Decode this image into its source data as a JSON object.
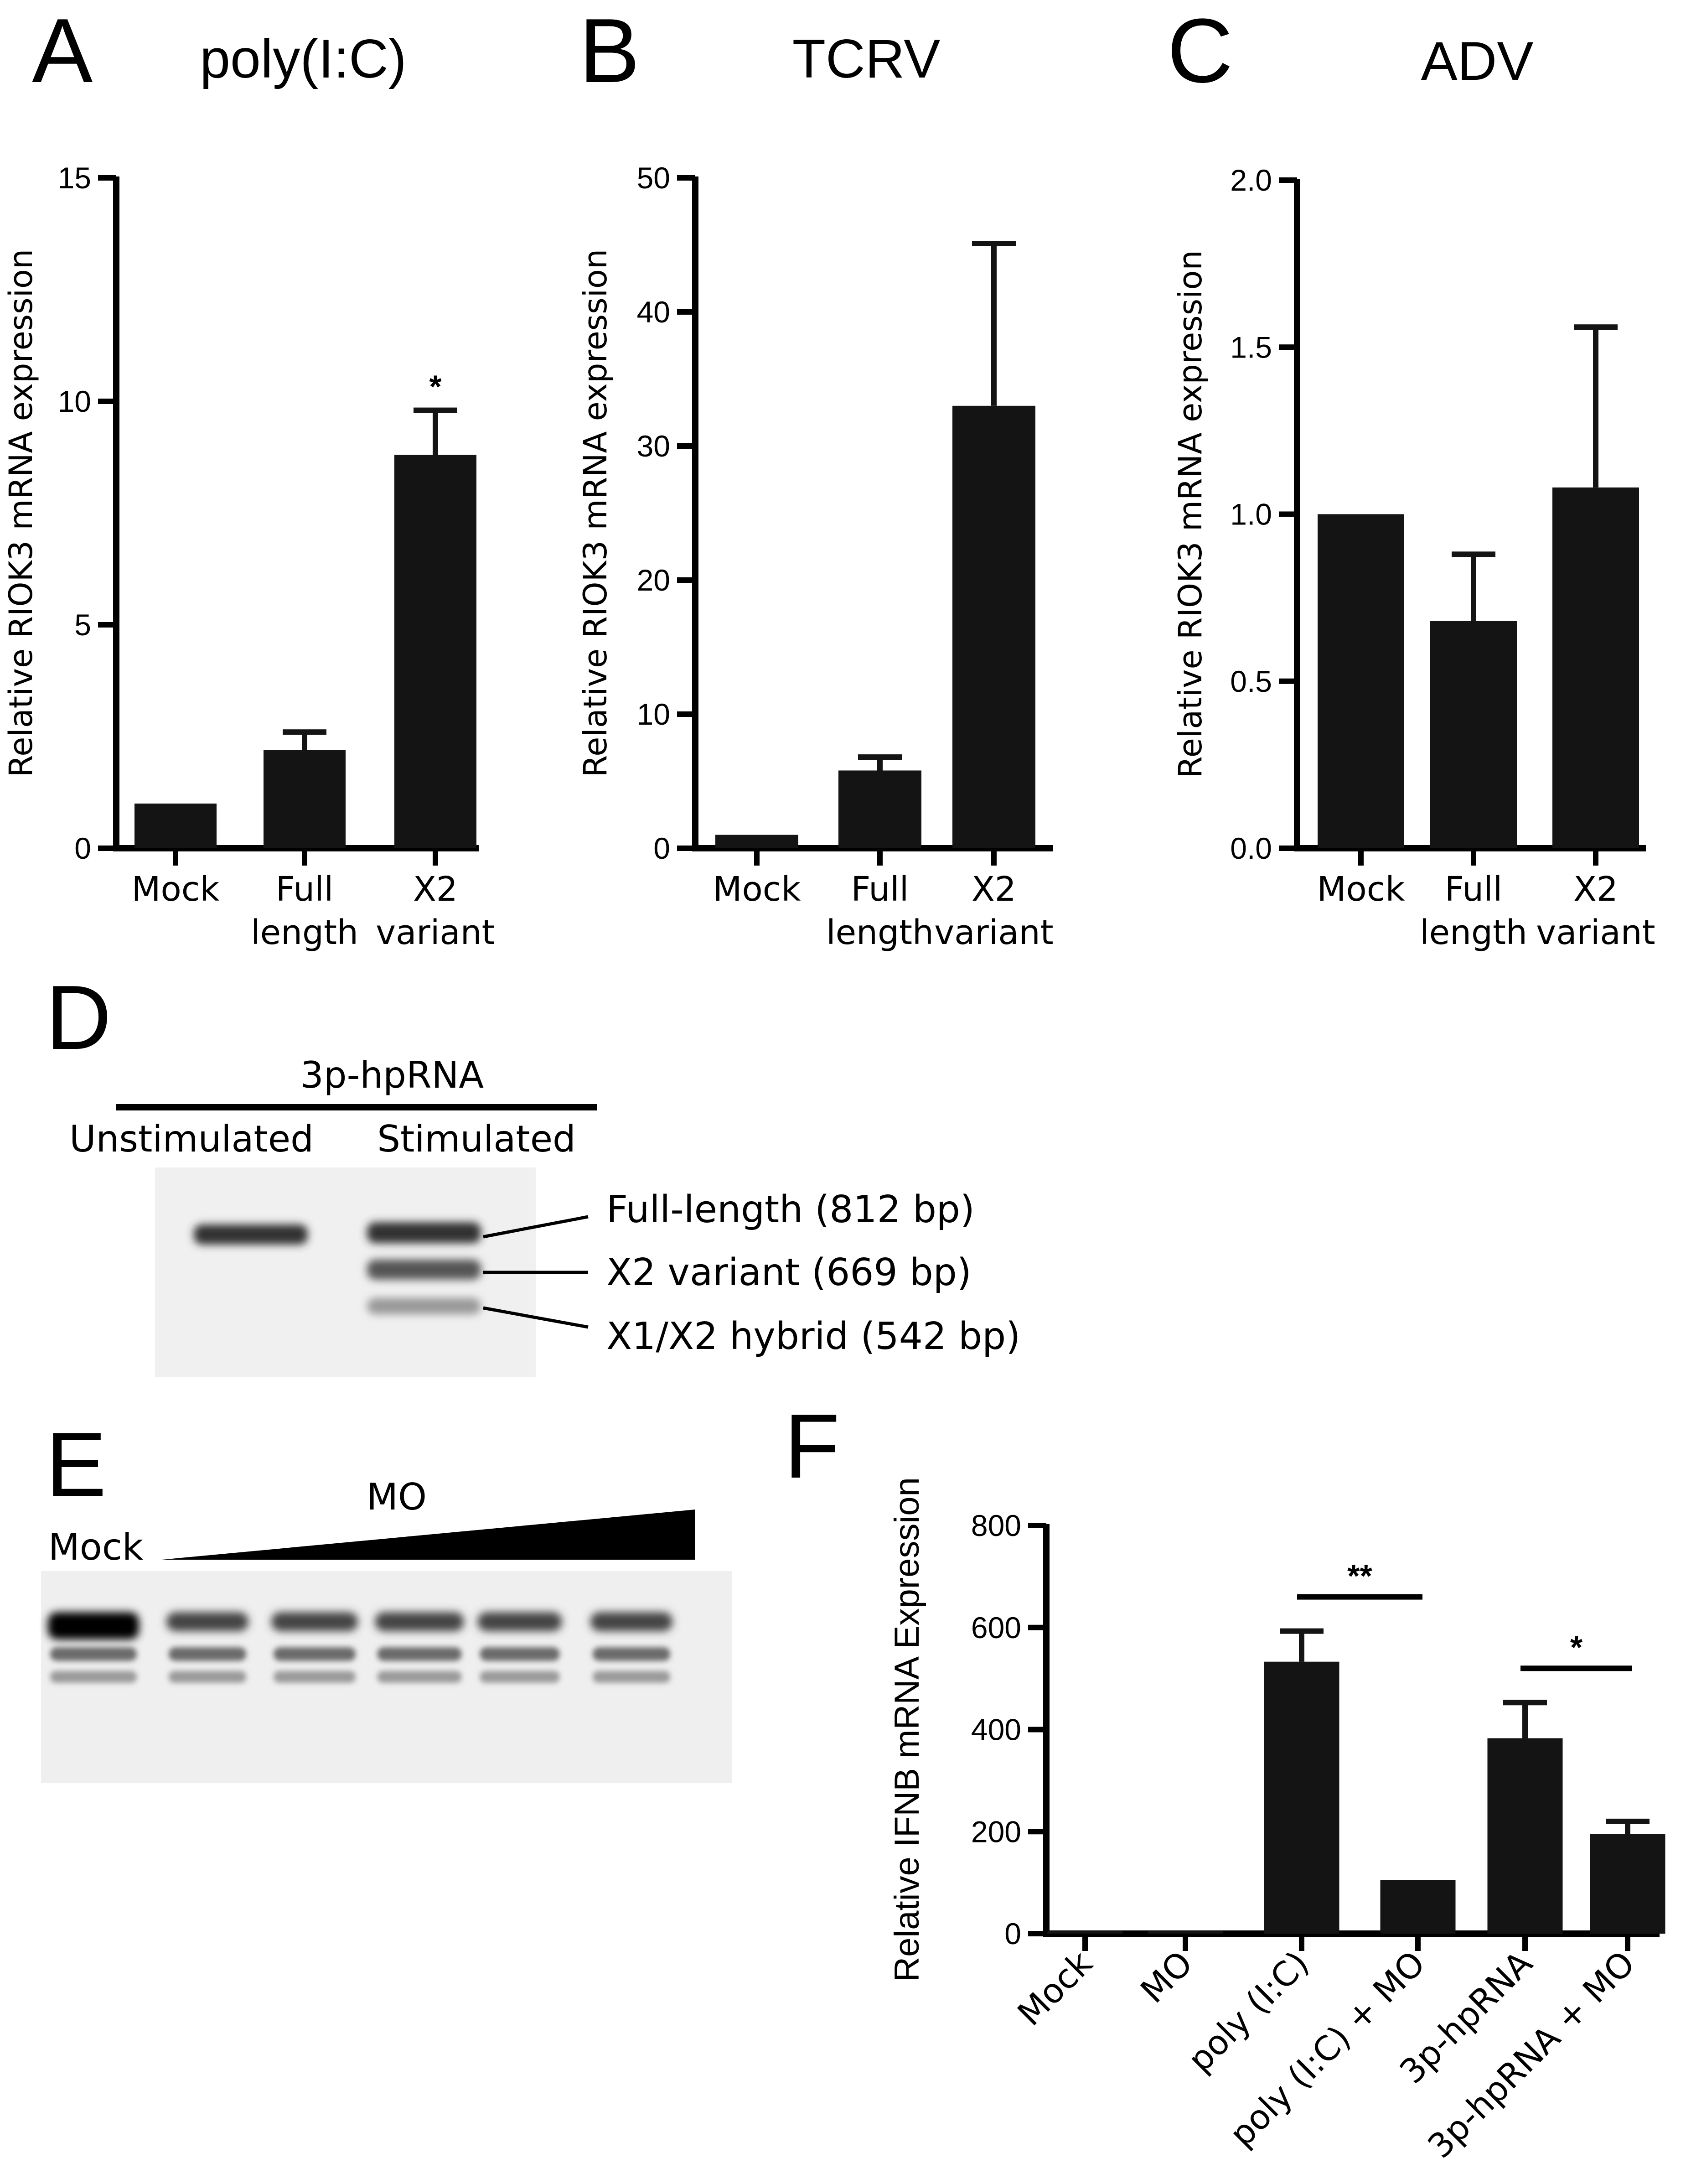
{
  "panels": {
    "A": "A",
    "B": "B",
    "C": "C",
    "D": "D",
    "E": "E",
    "F": "F"
  },
  "chart_data": [
    {
      "id": "A",
      "type": "bar",
      "title": "poly(I:C)",
      "ylabel": "Relative RIOK3 mRNA expression",
      "categories": [
        [
          "Mock"
        ],
        [
          "Full",
          "length"
        ],
        [
          "X2",
          "variant"
        ]
      ],
      "values": [
        1.0,
        2.2,
        8.8
      ],
      "errors": [
        0,
        0.4,
        1.0
      ],
      "ylim": [
        0,
        15
      ],
      "yticks": [
        0,
        5,
        10,
        15
      ],
      "ytick_labels": [
        "0",
        "5",
        "10",
        "15"
      ],
      "annotations": [
        {
          "text": "*",
          "category_index": 2
        }
      ]
    },
    {
      "id": "B",
      "type": "bar",
      "title": "TCRV",
      "ylabel": "Relative RIOK3 mRNA expression",
      "categories": [
        [
          "Mock"
        ],
        [
          "Full",
          "length"
        ],
        [
          "X2",
          "variant"
        ]
      ],
      "values": [
        1.0,
        5.8,
        33.0
      ],
      "errors": [
        0,
        1.0,
        12.1
      ],
      "ylim": [
        0,
        50
      ],
      "yticks": [
        0,
        10,
        20,
        30,
        40,
        50
      ],
      "ytick_labels": [
        "0",
        "10",
        "20",
        "30",
        "40",
        "50"
      ],
      "annotations": []
    },
    {
      "id": "C",
      "type": "bar",
      "title": "ADV",
      "ylabel": "Relative RIOK3 mRNA expression",
      "categories": [
        [
          "Mock"
        ],
        [
          "Full",
          "length"
        ],
        [
          "X2",
          "variant"
        ]
      ],
      "values": [
        1.0,
        0.68,
        1.08
      ],
      "errors": [
        0,
        0.2,
        0.48
      ],
      "ylim": [
        0,
        2.0
      ],
      "yticks": [
        0,
        0.5,
        1.0,
        1.5,
        2.0
      ],
      "ytick_labels": [
        "0.0",
        "0.5",
        "1.0",
        "1.5",
        "2.0"
      ],
      "annotations": []
    },
    {
      "id": "F",
      "type": "bar",
      "title": "",
      "ylabel": "Relative IFNB mRNA Expression",
      "categories": [
        "Mock",
        "MO",
        "poly (I:C)",
        "poly (I:C) + MO",
        "3p-hpRNA",
        "3p-hpRNA + MO"
      ],
      "values": [
        1,
        1,
        533,
        105,
        383,
        195
      ],
      "errors": [
        0,
        0,
        60,
        0,
        70,
        25
      ],
      "ylim": [
        0,
        800
      ],
      "yticks": [
        0,
        200,
        400,
        600,
        800
      ],
      "ytick_labels": [
        "0",
        "200",
        "400",
        "600",
        "800"
      ],
      "brackets": [
        {
          "from": 2,
          "to": 3,
          "text": "**"
        },
        {
          "from": 4,
          "to": 5,
          "text": "*"
        }
      ]
    }
  ],
  "gel_d": {
    "title": "3p-hpRNA",
    "lanes": [
      "Unstimulated",
      "Stimulated"
    ],
    "bands": [
      "Full-length (812 bp)",
      "X2 variant (669 bp)",
      "X1/X2 hybrid (542 bp)"
    ]
  },
  "gel_e": {
    "mock_label": "Mock",
    "mo_label": "MO",
    "lane_count": 6
  }
}
